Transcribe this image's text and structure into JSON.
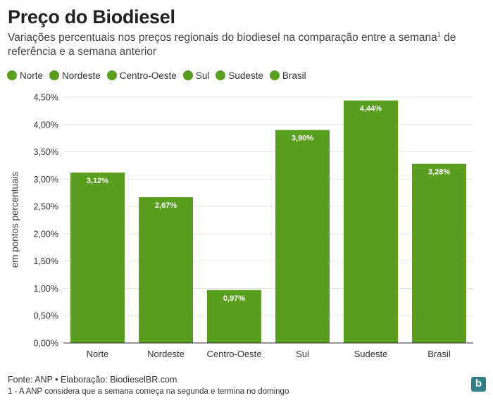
{
  "header": {
    "title": "Preço do Biodiesel",
    "subtitle": "Variações percentuais nos preços regionais do biodiesel na comparação entre a semana",
    "subtitle_marker": "1",
    "subtitle_end": " de referência e a semana anterior"
  },
  "legend": [
    {
      "label": "Norte"
    },
    {
      "label": "Nordeste"
    },
    {
      "label": "Centro-Oeste"
    },
    {
      "label": "Sul"
    },
    {
      "label": "Sudeste"
    },
    {
      "label": "Brasil"
    }
  ],
  "colors": {
    "bar": "#5a9e1f",
    "grid": "#e4e4e4",
    "axis": "#333333",
    "label_text": "#ffffff"
  },
  "chart_data": {
    "type": "bar",
    "categories": [
      "Norte",
      "Nordeste",
      "Centro-Oeste",
      "Sul",
      "Sudeste",
      "Brasil"
    ],
    "values": [
      3.12,
      2.67,
      0.97,
      3.9,
      4.44,
      3.28
    ],
    "value_labels": [
      "3,12%",
      "2,67%",
      "0,97%",
      "3,90%",
      "4,44%",
      "3,28%"
    ],
    "ylabel": "em pontos percentuais",
    "ylim": [
      0,
      4.5
    ],
    "yticks": [
      0,
      0.5,
      1.0,
      1.5,
      2.0,
      2.5,
      3.0,
      3.5,
      4.0,
      4.5
    ],
    "ytick_labels": [
      "0,00%",
      "0,50%",
      "1,00%",
      "1,50%",
      "2,00%",
      "2,50%",
      "3,00%",
      "3,50%",
      "4,00%",
      "4,50%"
    ],
    "grid": true,
    "legend_position": "top-left"
  },
  "footer": {
    "source": "Fonte: ANP • Elaboração: BiodieselBR.com",
    "note": "1 - A ANP considera que a semana começa na segunda e termina no domingo",
    "logo_letter": "b"
  }
}
